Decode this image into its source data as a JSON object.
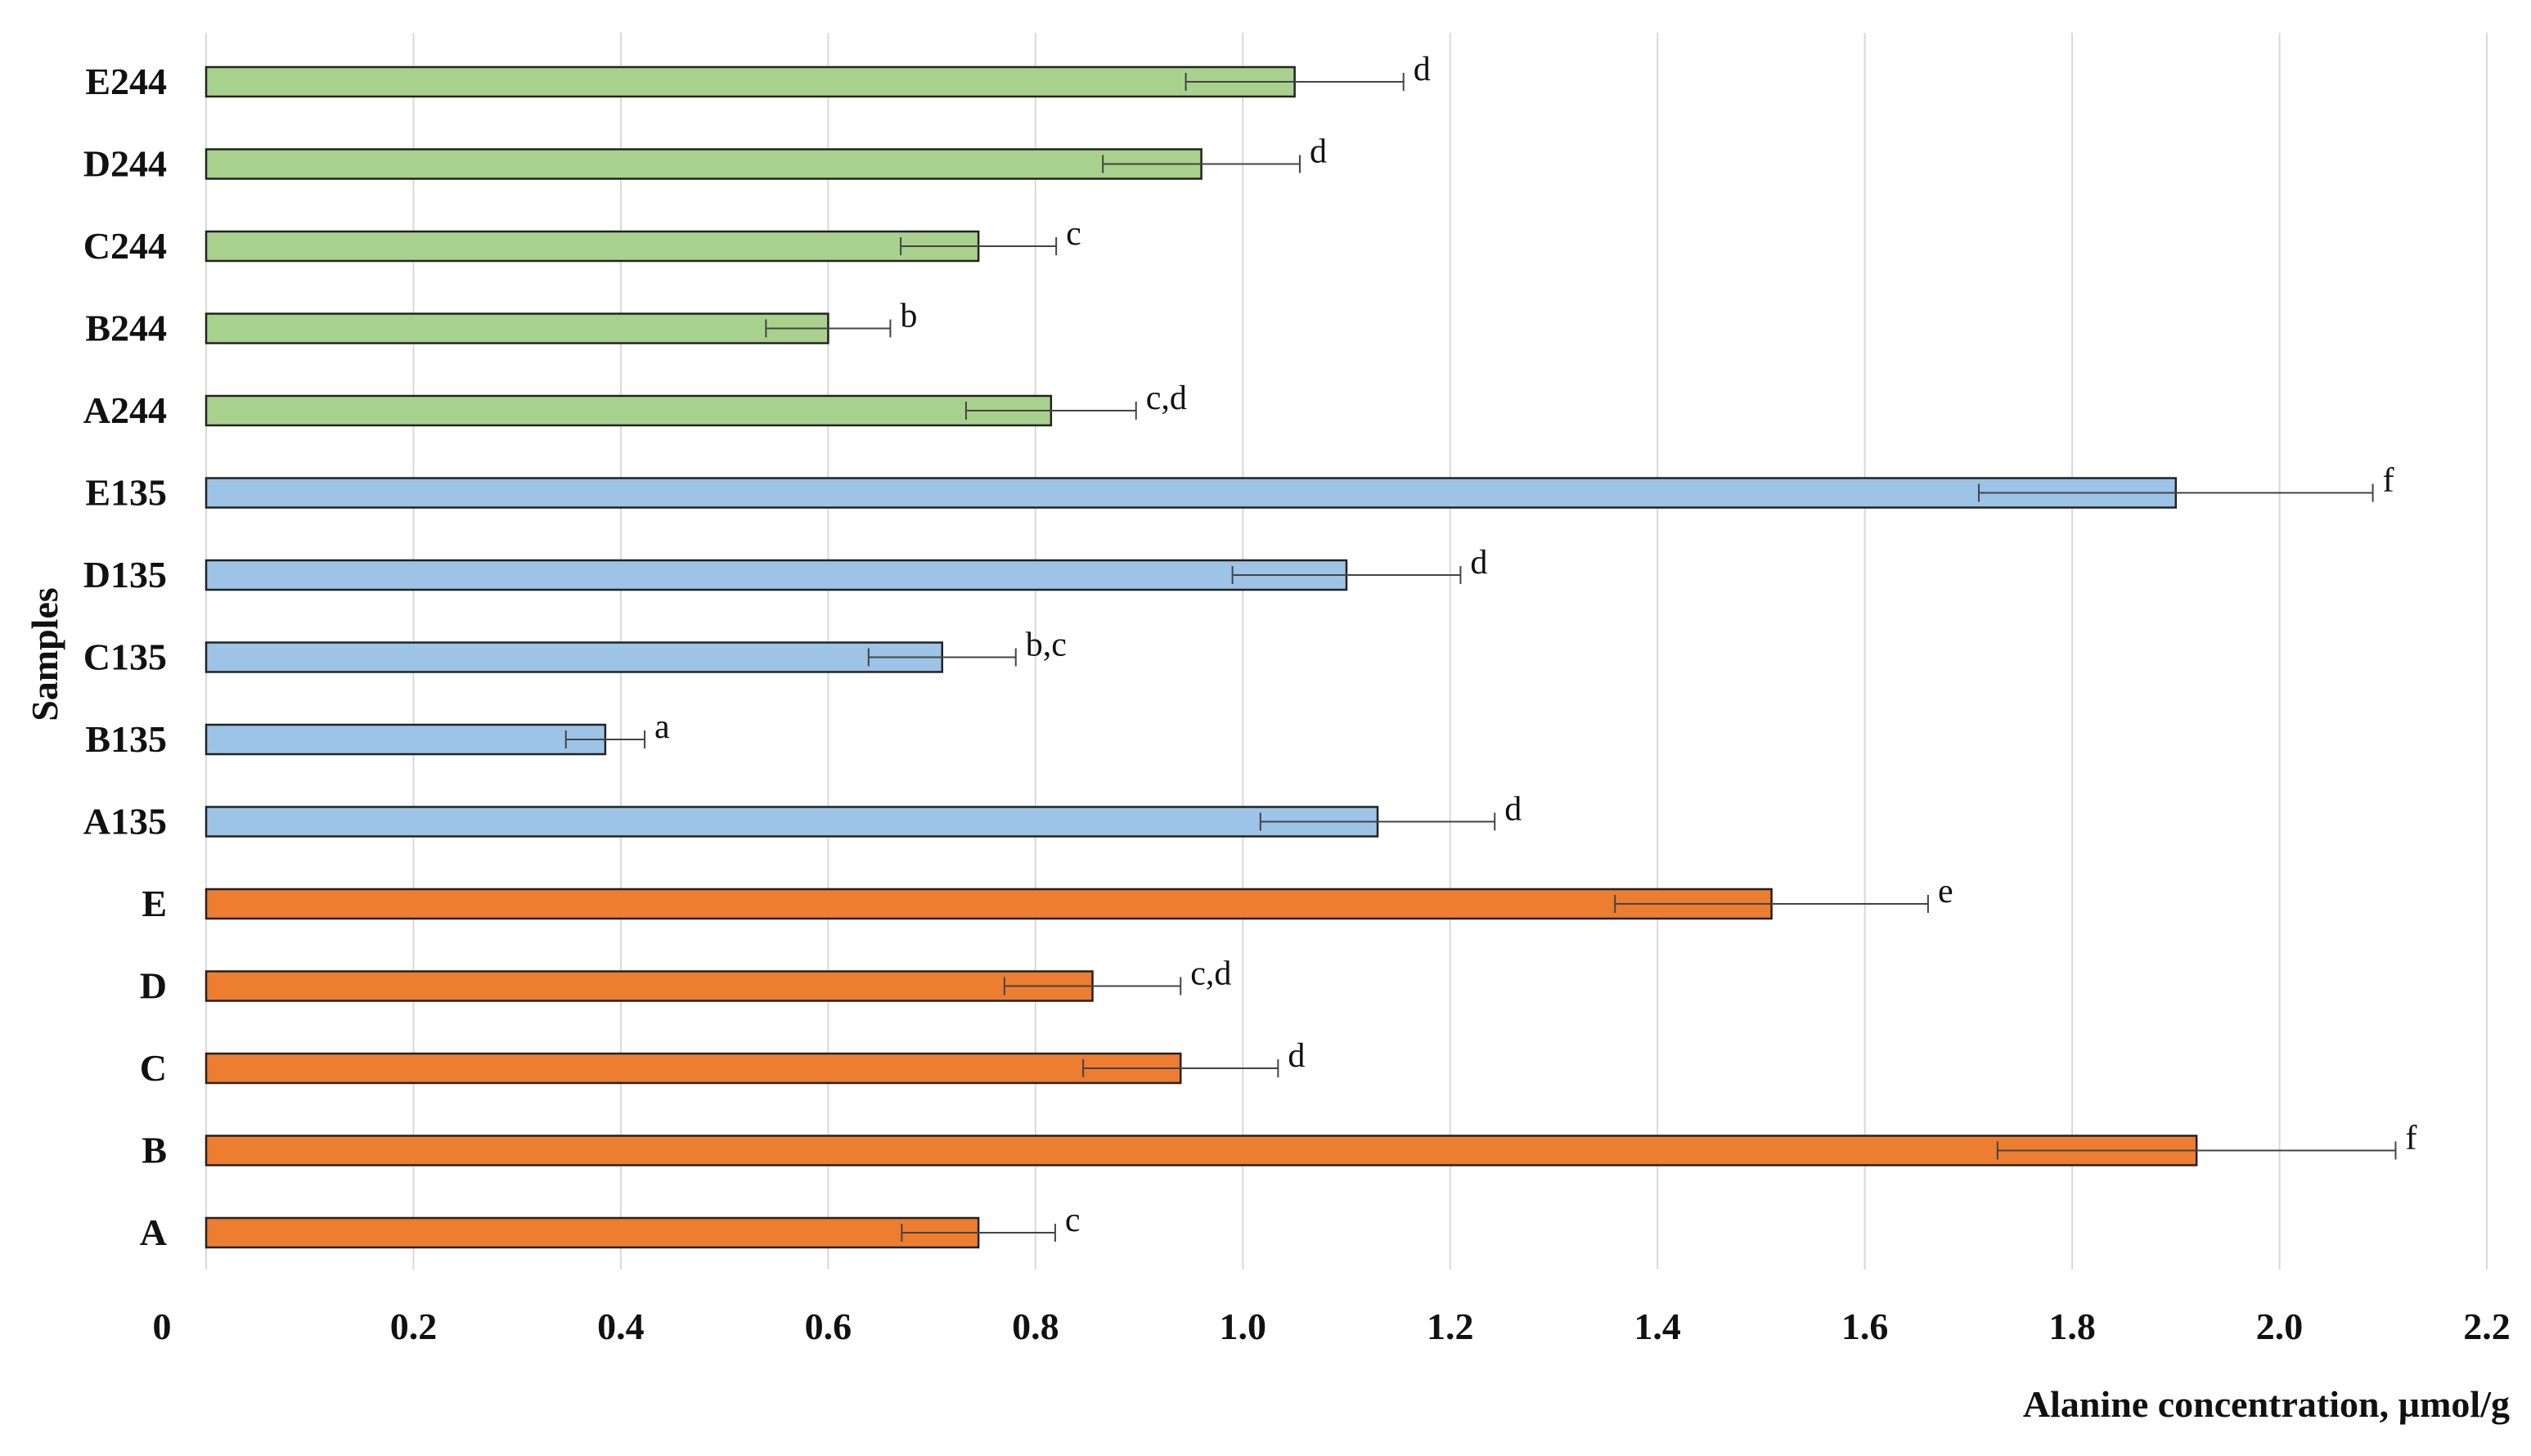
{
  "chart_data": {
    "type": "bar",
    "orientation": "horizontal",
    "title": "",
    "xlabel": "Alanine concentration, µmol/g",
    "ylabel": "Samples",
    "xlim": [
      0,
      2.2
    ],
    "x_ticks": [
      "0",
      "0.2",
      "0.4",
      "0.6",
      "0.8",
      "1.0",
      "1.2",
      "1.4",
      "1.6",
      "1.8",
      "2.0",
      "2.2"
    ],
    "grid": "vertical",
    "legend": "none",
    "colors": {
      "orange": "#ed7d31",
      "blue": "#9dc3e6",
      "green": "#a9d18e",
      "edge": "#222222",
      "grid": "#d9d9d9"
    },
    "bars": [
      {
        "label": "E244",
        "value": 1.05,
        "error": 0.105,
        "sig": "d",
        "color": "green"
      },
      {
        "label": "D244",
        "value": 0.96,
        "error": 0.095,
        "sig": "d",
        "color": "green"
      },
      {
        "label": "C244",
        "value": 0.745,
        "error": 0.075,
        "sig": "c",
        "color": "green"
      },
      {
        "label": "B244",
        "value": 0.6,
        "error": 0.06,
        "sig": "b",
        "color": "green"
      },
      {
        "label": "A244",
        "value": 0.815,
        "error": 0.082,
        "sig": "c,d",
        "color": "green"
      },
      {
        "label": "E135",
        "value": 1.9,
        "error": 0.19,
        "sig": "f",
        "color": "blue"
      },
      {
        "label": "D135",
        "value": 1.1,
        "error": 0.11,
        "sig": "d",
        "color": "blue"
      },
      {
        "label": "C135",
        "value": 0.71,
        "error": 0.071,
        "sig": "b,c",
        "color": "blue"
      },
      {
        "label": "B135",
        "value": 0.385,
        "error": 0.038,
        "sig": "a",
        "color": "blue"
      },
      {
        "label": "A135",
        "value": 1.13,
        "error": 0.113,
        "sig": "d",
        "color": "blue"
      },
      {
        "label": "E",
        "value": 1.51,
        "error": 0.151,
        "sig": "e",
        "color": "orange"
      },
      {
        "label": "D",
        "value": 0.855,
        "error": 0.085,
        "sig": "c,d",
        "color": "orange"
      },
      {
        "label": "C",
        "value": 0.94,
        "error": 0.094,
        "sig": "d",
        "color": "orange"
      },
      {
        "label": "B",
        "value": 1.92,
        "error": 0.192,
        "sig": "f",
        "color": "orange"
      },
      {
        "label": "A",
        "value": 0.745,
        "error": 0.074,
        "sig": "c",
        "color": "orange"
      }
    ]
  }
}
